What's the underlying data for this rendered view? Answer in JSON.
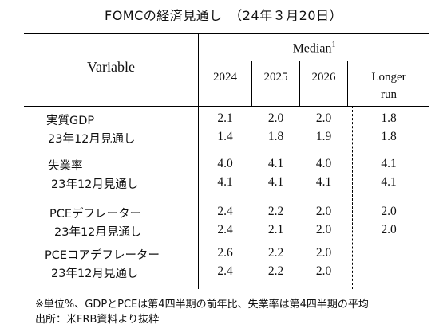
{
  "title": "FOMCの経済見通し　（24年３月20日）",
  "header": {
    "variable": "Variable",
    "median": "Median",
    "median_sup": "1",
    "years": [
      "2024",
      "2025",
      "2026"
    ],
    "longer_run_1": "Longer",
    "longer_run_2": "run"
  },
  "rows": [
    {
      "label": "実質GDP",
      "values": [
        "2.1",
        "2.0",
        "2.0",
        "1.8"
      ]
    },
    {
      "label": "23年12月見通し",
      "values": [
        "1.4",
        "1.8",
        "1.9",
        "1.8"
      ]
    },
    {
      "label": "失業率",
      "values": [
        "4.0",
        "4.1",
        "4.0",
        "4.1"
      ]
    },
    {
      "label": "23年12月見通し",
      "values": [
        "4.1",
        "4.1",
        "4.1",
        "4.1"
      ]
    },
    {
      "label": "PCEデフレーター",
      "values": [
        "2.4",
        "2.2",
        "2.0",
        "2.0"
      ]
    },
    {
      "label": "23年12月見通し",
      "values": [
        "2.4",
        "2.1",
        "2.0",
        "2.0"
      ]
    },
    {
      "label": "PCEコアデフレーター",
      "values": [
        "2.6",
        "2.2",
        "2.0",
        ""
      ]
    },
    {
      "label": "23年12月見通し",
      "values": [
        "2.4",
        "2.2",
        "2.0",
        ""
      ]
    }
  ],
  "notes": [
    "※単位%、GDPとPCEは第4四半期の前年比、失業率は第4四半期の平均",
    "出所：米FRB資料より抜粋"
  ]
}
